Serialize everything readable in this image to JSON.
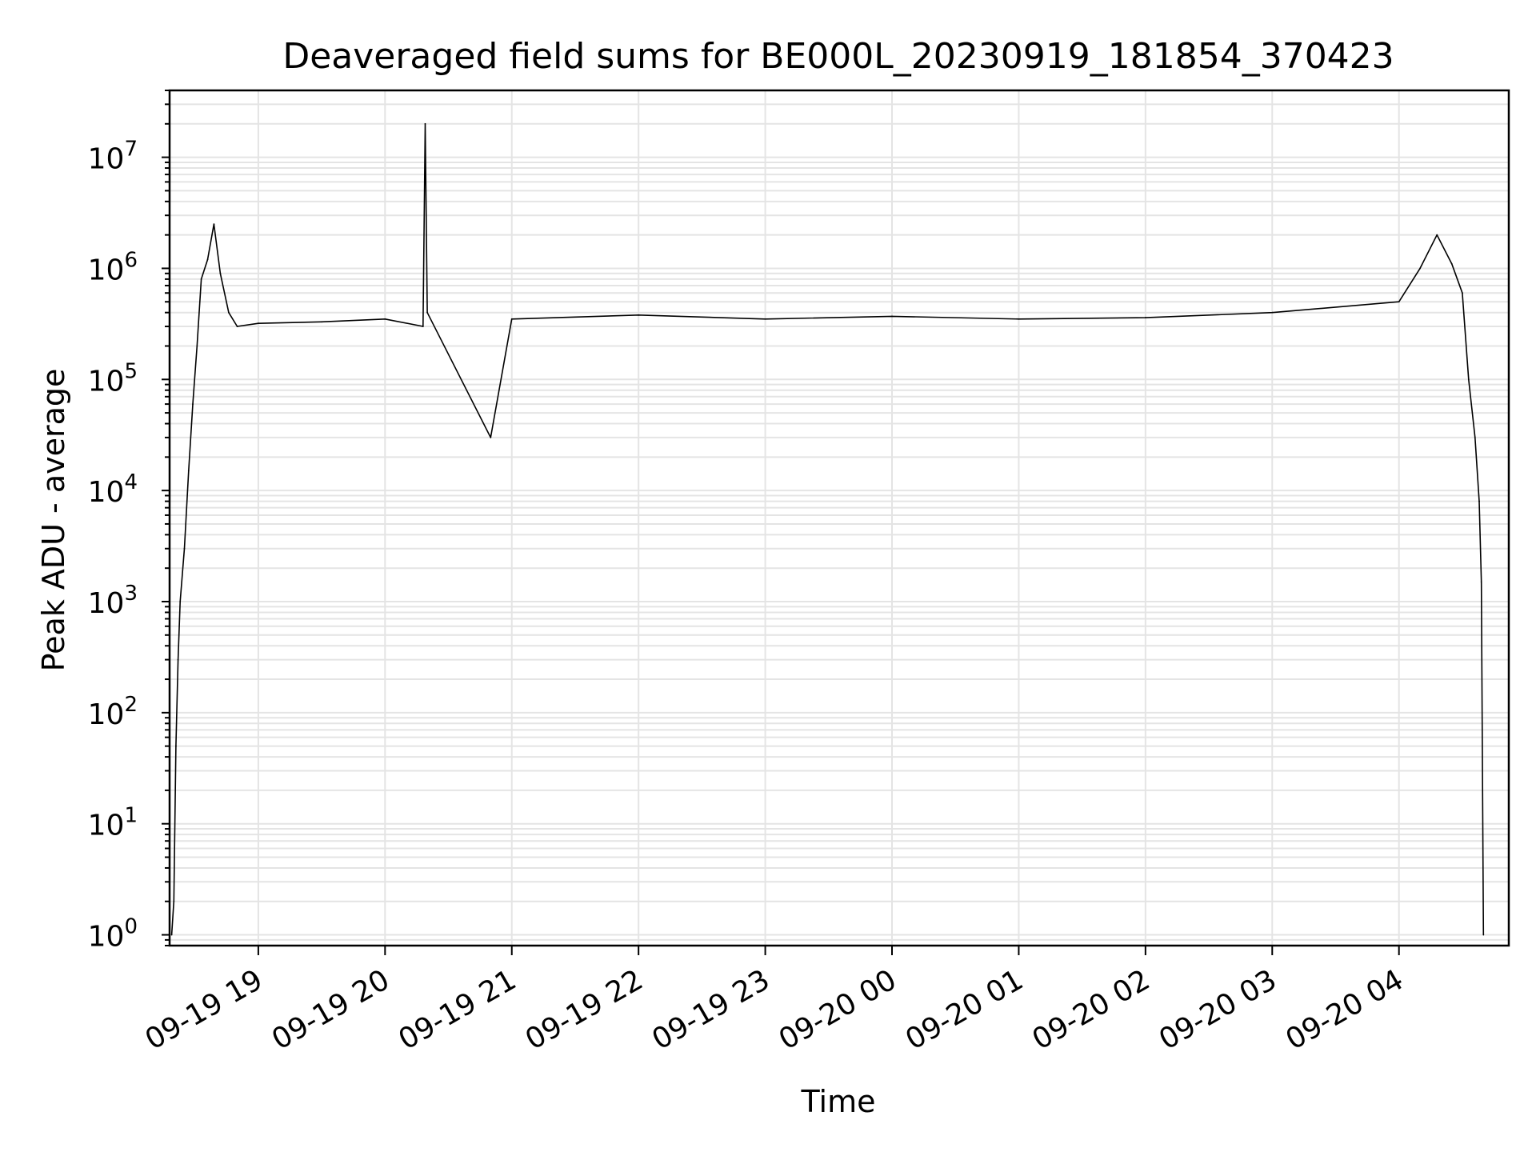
{
  "chart_data": {
    "type": "line",
    "title": "Deaveraged field sums for BE000L_20230919_181854_370423",
    "xlabel": "Time",
    "ylabel": "Peak ADU - average",
    "yscale": "log",
    "ylim": [
      0.8,
      40000000
    ],
    "xlim": [
      "2023-09-19 18:18",
      "2023-09-20 04:52"
    ],
    "grid": true,
    "x_ticks": [
      "09-19 19",
      "09-19 20",
      "09-19 21",
      "09-19 22",
      "09-19 23",
      "09-20 00",
      "09-20 01",
      "09-20 02",
      "09-20 03",
      "09-20 04"
    ],
    "y_ticks": [
      {
        "base": "10",
        "exp": "0"
      },
      {
        "base": "10",
        "exp": "1"
      },
      {
        "base": "10",
        "exp": "2"
      },
      {
        "base": "10",
        "exp": "3"
      },
      {
        "base": "10",
        "exp": "4"
      },
      {
        "base": "10",
        "exp": "5"
      },
      {
        "base": "10",
        "exp": "6"
      },
      {
        "base": "10",
        "exp": "7"
      }
    ],
    "series": [
      {
        "color": "#000000",
        "points": [
          {
            "x": "2023-09-19 18:19",
            "y": 1
          },
          {
            "x": "2023-09-19 18:20",
            "y": 2
          },
          {
            "x": "2023-09-19 18:21",
            "y": 50
          },
          {
            "x": "2023-09-19 18:22",
            "y": 300
          },
          {
            "x": "2023-09-19 18:23",
            "y": 1000
          },
          {
            "x": "2023-09-19 18:25",
            "y": 3000
          },
          {
            "x": "2023-09-19 18:27",
            "y": 15000
          },
          {
            "x": "2023-09-19 18:29",
            "y": 60000
          },
          {
            "x": "2023-09-19 18:31",
            "y": 200000
          },
          {
            "x": "2023-09-19 18:33",
            "y": 800000
          },
          {
            "x": "2023-09-19 18:36",
            "y": 1200000
          },
          {
            "x": "2023-09-19 18:39",
            "y": 2500000
          },
          {
            "x": "2023-09-19 18:42",
            "y": 900000
          },
          {
            "x": "2023-09-19 18:46",
            "y": 400000
          },
          {
            "x": "2023-09-19 18:50",
            "y": 300000
          },
          {
            "x": "2023-09-19 19:00",
            "y": 320000
          },
          {
            "x": "2023-09-19 19:30",
            "y": 330000
          },
          {
            "x": "2023-09-19 20:00",
            "y": 350000
          },
          {
            "x": "2023-09-19 20:18",
            "y": 300000
          },
          {
            "x": "2023-09-19 20:19",
            "y": 20000000
          },
          {
            "x": "2023-09-19 20:20",
            "y": 400000
          },
          {
            "x": "2023-09-19 20:50",
            "y": 30000
          },
          {
            "x": "2023-09-19 21:00",
            "y": 350000
          },
          {
            "x": "2023-09-19 22:00",
            "y": 380000
          },
          {
            "x": "2023-09-19 23:00",
            "y": 350000
          },
          {
            "x": "2023-09-20 00:00",
            "y": 370000
          },
          {
            "x": "2023-09-20 01:00",
            "y": 350000
          },
          {
            "x": "2023-09-20 02:00",
            "y": 360000
          },
          {
            "x": "2023-09-20 03:00",
            "y": 400000
          },
          {
            "x": "2023-09-20 04:00",
            "y": 500000
          },
          {
            "x": "2023-09-20 04:10",
            "y": 1000000
          },
          {
            "x": "2023-09-20 04:18",
            "y": 2000000
          },
          {
            "x": "2023-09-20 04:25",
            "y": 1100000
          },
          {
            "x": "2023-09-20 04:30",
            "y": 600000
          },
          {
            "x": "2023-09-20 04:33",
            "y": 100000
          },
          {
            "x": "2023-09-20 04:36",
            "y": 30000
          },
          {
            "x": "2023-09-20 04:38",
            "y": 8000
          },
          {
            "x": "2023-09-20 04:39",
            "y": 1500
          },
          {
            "x": "2023-09-20 04:40",
            "y": 1
          }
        ]
      }
    ]
  }
}
